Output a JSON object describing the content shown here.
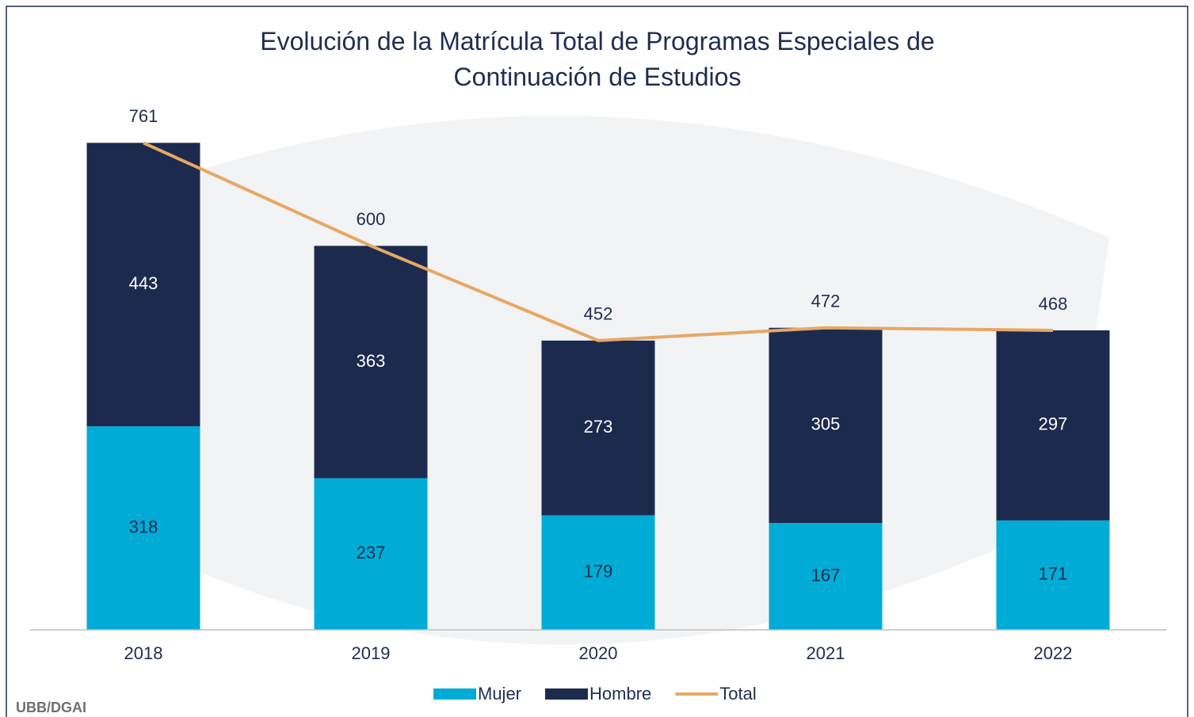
{
  "chart_data": {
    "type": "bar",
    "stacked": true,
    "title": "Evolución de la Matrícula Total de Programas Especiales de Continuación de Estudios",
    "categories": [
      "2018",
      "2019",
      "2020",
      "2021",
      "2022"
    ],
    "series": [
      {
        "name": "Mujer",
        "color": "#00acd6",
        "values": [
          318,
          237,
          179,
          167,
          171
        ]
      },
      {
        "name": "Hombre",
        "color": "#1c2a4e",
        "values": [
          443,
          363,
          273,
          305,
          297
        ]
      },
      {
        "name": "Total",
        "type": "line",
        "color": "#e6a864",
        "values": [
          761,
          600,
          452,
          472,
          468
        ]
      }
    ],
    "ylim": [
      0,
      900
    ],
    "legend": "bottom",
    "source": "UBB/DGAI"
  }
}
